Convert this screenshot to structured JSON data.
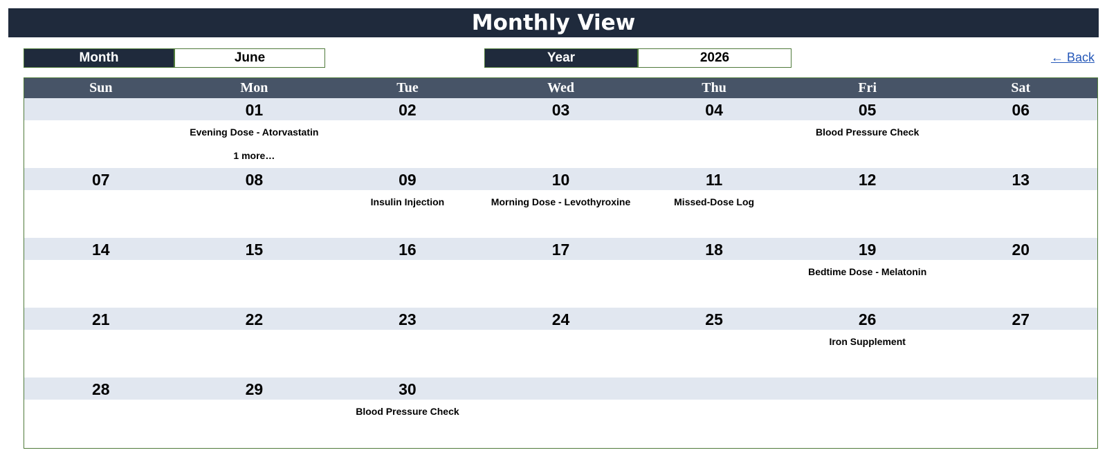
{
  "header": {
    "title": "Monthly View"
  },
  "controls": {
    "month_label": "Month",
    "month_value": "June",
    "year_label": "Year",
    "year_value": "2026",
    "back_link": "← Back"
  },
  "calendar": {
    "weekdays": [
      "Sun",
      "Mon",
      "Tue",
      "Wed",
      "Thu",
      "Fri",
      "Sat"
    ],
    "weeks": [
      {
        "days": [
          {
            "num": "",
            "events": []
          },
          {
            "num": "01",
            "events": [
              "Evening Dose - Atorvastatin",
              "1 more…"
            ]
          },
          {
            "num": "02",
            "events": []
          },
          {
            "num": "03",
            "events": []
          },
          {
            "num": "04",
            "events": []
          },
          {
            "num": "05",
            "events": [
              "Blood Pressure Check"
            ]
          },
          {
            "num": "06",
            "events": []
          }
        ]
      },
      {
        "days": [
          {
            "num": "07",
            "events": []
          },
          {
            "num": "08",
            "events": []
          },
          {
            "num": "09",
            "events": [
              "Insulin Injection"
            ]
          },
          {
            "num": "10",
            "events": [
              "Morning Dose - Levothyroxine"
            ]
          },
          {
            "num": "11",
            "events": [
              "Missed-Dose Log"
            ]
          },
          {
            "num": "12",
            "events": []
          },
          {
            "num": "13",
            "events": []
          }
        ]
      },
      {
        "days": [
          {
            "num": "14",
            "events": []
          },
          {
            "num": "15",
            "events": []
          },
          {
            "num": "16",
            "events": []
          },
          {
            "num": "17",
            "events": []
          },
          {
            "num": "18",
            "events": []
          },
          {
            "num": "19",
            "events": [
              "Bedtime Dose - Melatonin"
            ]
          },
          {
            "num": "20",
            "events": []
          }
        ]
      },
      {
        "days": [
          {
            "num": "21",
            "events": []
          },
          {
            "num": "22",
            "events": []
          },
          {
            "num": "23",
            "events": []
          },
          {
            "num": "24",
            "events": []
          },
          {
            "num": "25",
            "events": []
          },
          {
            "num": "26",
            "events": [
              "Iron Supplement"
            ]
          },
          {
            "num": "27",
            "events": []
          }
        ]
      },
      {
        "days": [
          {
            "num": "28",
            "events": []
          },
          {
            "num": "29",
            "events": []
          },
          {
            "num": "30",
            "events": [
              "Blood Pressure Check"
            ]
          },
          {
            "num": "",
            "events": []
          },
          {
            "num": "",
            "events": []
          },
          {
            "num": "",
            "events": []
          },
          {
            "num": "",
            "events": []
          }
        ]
      }
    ]
  },
  "colors": {
    "title_bg": "#1f2a3c",
    "header_bg": "#475467",
    "date_row_bg": "#e1e7f0",
    "border": "#4f7a3a",
    "link": "#2457b8"
  }
}
